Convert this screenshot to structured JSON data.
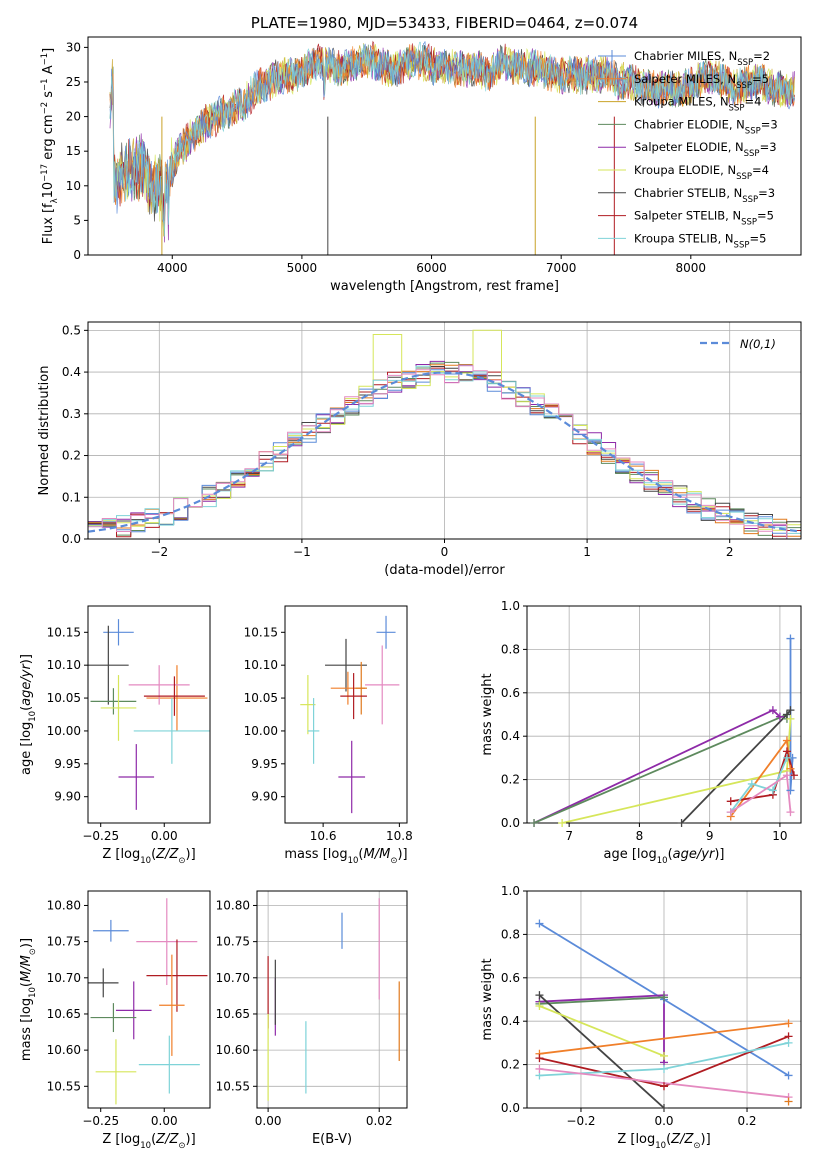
{
  "figure": {
    "title": "PLATE=1980, MJD=53433, FIBERID=0464, z=0.074",
    "colors": {
      "c1": "#5b8bd9",
      "c2": "#e07a1f",
      "c3": "#c9a227",
      "c4": "#5e8a5e",
      "c5": "#8e2aa8",
      "c6": "#d6e65a",
      "c7": "#444444",
      "c8": "#b01c22",
      "c9": "#7fd3d8",
      "c10": "#e48ac0",
      "c11": "#f07f2a"
    }
  },
  "chart_data": [
    {
      "id": "spectrum",
      "type": "line",
      "title": "PLATE=1980, MJD=53433, FIBERID=0464, z=0.074",
      "xlabel": "wavelength [Angstrom, rest frame]",
      "ylabel": "Flux [f_λ 10^-17 erg cm^-2 s^-1 A^-1]",
      "xlim": [
        3350,
        8850
      ],
      "ylim": [
        0,
        31.5
      ],
      "xticks": [
        4000,
        5000,
        6000,
        7000,
        8000
      ],
      "yticks": [
        0,
        5,
        10,
        15,
        20,
        25,
        30
      ],
      "x": [
        3550,
        3650,
        3750,
        3850,
        3950,
        4050,
        4150,
        4250,
        4350,
        4450,
        4550,
        4650,
        4750,
        4850,
        4950,
        5050,
        5150,
        5250,
        5350,
        5450,
        5550,
        5650,
        5750,
        5850,
        5950,
        6050,
        6150,
        6250,
        6350,
        6450,
        6550,
        6650,
        6750,
        6850,
        6950,
        7050,
        7150,
        7250,
        7350,
        7450,
        7550,
        7650,
        7750,
        7850,
        7950,
        8050,
        8150,
        8250,
        8350,
        8450,
        8550,
        8650,
        8750
      ],
      "y": [
        11,
        12,
        13,
        10,
        10,
        15,
        17,
        19,
        20,
        21,
        22,
        24,
        25,
        26,
        26,
        27,
        28,
        27,
        27,
        28,
        28,
        27,
        27,
        28,
        28,
        27,
        27,
        27,
        27,
        26,
        28,
        27,
        27,
        27,
        26,
        26,
        26,
        26,
        26,
        25,
        25,
        24,
        24,
        24,
        24,
        25,
        26,
        25,
        24,
        25,
        25,
        24,
        24
      ],
      "legend_placement": "upper-right",
      "legend": [
        {
          "label": "Chabrier MILES, N_SSP=2",
          "pre": "Chabrier MILES, N",
          "sub": "SSP",
          "post": "=2",
          "color": "c1",
          "marker": true
        },
        {
          "label": "Salpeter MILES, N_SSP=5",
          "pre": "Salpeter MILES, N",
          "sub": "SSP",
          "post": "=5",
          "color": "c11",
          "marker": true
        },
        {
          "label": "Kroupa MILES, N_SSP=4",
          "pre": "Kroupa MILES, N",
          "sub": "SSP",
          "post": "=4",
          "color": "c3",
          "marker": false
        },
        {
          "label": "Chabrier ELODIE, N_SSP=3",
          "pre": "Chabrier ELODIE, N",
          "sub": "SSP",
          "post": "=3",
          "color": "c4",
          "marker": false
        },
        {
          "label": "Salpeter ELODIE, N_SSP=3",
          "pre": "Salpeter ELODIE, N",
          "sub": "SSP",
          "post": "=3",
          "color": "c5",
          "marker": false
        },
        {
          "label": "Kroupa ELODIE, N_SSP=4",
          "pre": "Kroupa ELODIE, N",
          "sub": "SSP",
          "post": "=4",
          "color": "c6",
          "marker": false
        },
        {
          "label": "Chabrier STELIB, N_SSP=3",
          "pre": "Chabrier STELIB, N",
          "sub": "SSP",
          "post": "=3",
          "color": "c7",
          "marker": false
        },
        {
          "label": "Salpeter STELIB, N_SSP=5",
          "pre": "Salpeter STELIB, N",
          "sub": "SSP",
          "post": "=5",
          "color": "c8",
          "marker": false
        },
        {
          "label": "Kroupa STELIB, N_SSP=5",
          "pre": "Kroupa STELIB, N",
          "sub": "SSP",
          "post": "=5",
          "color": "c9",
          "marker": false
        }
      ]
    },
    {
      "id": "residuals",
      "type": "line",
      "xlabel": "(data-model)/error",
      "ylabel": "Normed distribution",
      "xlim": [
        -2.5,
        2.5
      ],
      "ylim": [
        0,
        0.52
      ],
      "xticks": [
        -2,
        -1,
        0,
        1,
        2
      ],
      "yticks": [
        0,
        0.1,
        0.2,
        0.3,
        0.4,
        0.5
      ],
      "grid": true,
      "bin_width": 0.1,
      "normal_curve_label": "N(0,1)",
      "legend_placement": "upper-right"
    },
    {
      "id": "age_vs_Z",
      "type": "scatter",
      "xlabel": "Z [log10(Z/Z☉)]",
      "ylabel": "age [log10(age/yr)]",
      "xlim": [
        -0.3,
        0.18
      ],
      "ylim": [
        9.86,
        10.19
      ],
      "xticks": [
        -0.25,
        0.0
      ],
      "yticks": [
        9.9,
        9.95,
        10.0,
        10.05,
        10.1,
        10.15
      ],
      "points": [
        {
          "x": -0.18,
          "y": 10.15,
          "xerr": 0.06,
          "yerr": 0.02,
          "color": "c1"
        },
        {
          "x": -0.22,
          "y": 10.1,
          "xerr": 0.08,
          "yerr": 0.06,
          "color": "c7"
        },
        {
          "x": -0.2,
          "y": 10.045,
          "xerr": 0.09,
          "yerr": 0.02,
          "color": "c4"
        },
        {
          "x": -0.18,
          "y": 10.035,
          "xerr": 0.07,
          "yerr": 0.05,
          "color": "c6"
        },
        {
          "x": 0.05,
          "y": 10.05,
          "xerr": 0.12,
          "yerr": 0.05,
          "color": "c11"
        },
        {
          "x": -0.02,
          "y": 10.07,
          "xerr": 0.12,
          "yerr": 0.03,
          "color": "c10"
        },
        {
          "x": 0.04,
          "y": 10.053,
          "xerr": 0.12,
          "yerr": 0.03,
          "color": "c8"
        },
        {
          "x": 0.03,
          "y": 10.0,
          "xerr": 0.15,
          "yerr": 0.05,
          "color": "c9"
        },
        {
          "x": -0.11,
          "y": 9.93,
          "xerr": 0.07,
          "yerr": 0.05,
          "color": "c5"
        }
      ]
    },
    {
      "id": "age_vs_mass",
      "type": "scatter",
      "xlabel": "mass [log10(M/M☉)]",
      "ylabel": "",
      "xlim": [
        10.5,
        10.82
      ],
      "ylim": [
        9.86,
        10.19
      ],
      "xticks": [
        10.6,
        10.8
      ],
      "yticks": [
        9.9,
        9.95,
        10.0,
        10.05,
        10.1,
        10.15
      ],
      "points": [
        {
          "x": 10.765,
          "y": 10.15,
          "xerr": 0.025,
          "yerr": 0.025,
          "color": "c1"
        },
        {
          "x": 10.66,
          "y": 10.1,
          "xerr": 0.055,
          "yerr": 0.04,
          "color": "c7"
        },
        {
          "x": 10.665,
          "y": 10.065,
          "xerr": 0.045,
          "yerr": 0.025,
          "color": "c11"
        },
        {
          "x": 10.7,
          "y": 10.065,
          "xerr": 0.015,
          "yerr": 0.04,
          "color": "c2"
        },
        {
          "x": 10.755,
          "y": 10.07,
          "xerr": 0.045,
          "yerr": 0.06,
          "color": "c10"
        },
        {
          "x": 10.68,
          "y": 10.053,
          "xerr": 0.035,
          "yerr": 0.035,
          "color": "c8"
        },
        {
          "x": 10.56,
          "y": 10.04,
          "xerr": 0.02,
          "yerr": 0.045,
          "color": "c6"
        },
        {
          "x": 10.575,
          "y": 10.0,
          "xerr": 0.015,
          "yerr": 0.05,
          "color": "c9"
        },
        {
          "x": 10.675,
          "y": 9.93,
          "xerr": 0.035,
          "yerr": 0.055,
          "color": "c5"
        }
      ]
    },
    {
      "id": "weights_vs_age",
      "type": "line",
      "xlabel": "age [log10(age/yr)]",
      "ylabel": "mass weight",
      "xlim": [
        6.4,
        10.3
      ],
      "ylim": [
        0,
        1.0
      ],
      "xticks": [
        7,
        8,
        9,
        10
      ],
      "yticks": [
        0.0,
        0.2,
        0.4,
        0.6,
        0.8,
        1.0
      ],
      "grid": true,
      "series": [
        {
          "color": "c1",
          "x": [
            10.15,
            10.15,
            10.18
          ],
          "y": [
            0.85,
            0.15,
            0.3
          ]
        },
        {
          "color": "c5",
          "x": [
            6.5,
            9.9,
            10.0
          ],
          "y": [
            0.0,
            0.52,
            0.49
          ]
        },
        {
          "color": "c4",
          "x": [
            6.5,
            10.1,
            10.1
          ],
          "y": [
            0.0,
            0.5,
            0.48
          ]
        },
        {
          "color": "c7",
          "x": [
            8.6,
            10.1,
            10.15
          ],
          "y": [
            0.0,
            0.5,
            0.52
          ]
        },
        {
          "color": "c6",
          "x": [
            6.9,
            10.1,
            10.15
          ],
          "y": [
            0.0,
            0.24,
            0.48
          ]
        },
        {
          "color": "c11",
          "x": [
            9.3,
            10.1,
            10.15
          ],
          "y": [
            0.03,
            0.38,
            0.25
          ]
        },
        {
          "color": "c8",
          "x": [
            9.3,
            9.9,
            10.1,
            10.2
          ],
          "y": [
            0.1,
            0.13,
            0.33,
            0.22
          ]
        },
        {
          "color": "c9",
          "x": [
            9.3,
            9.6,
            9.9,
            10.1
          ],
          "y": [
            0.05,
            0.18,
            0.15,
            0.3
          ]
        },
        {
          "color": "c10",
          "x": [
            9.3,
            10.1,
            10.15
          ],
          "y": [
            0.05,
            0.22,
            0.05
          ]
        }
      ]
    },
    {
      "id": "mass_vs_Z",
      "type": "scatter",
      "xlabel": "Z [log10(Z/Z☉)]",
      "ylabel": "mass [log10(M/M☉)]",
      "xlim": [
        -0.3,
        0.18
      ],
      "ylim": [
        10.52,
        10.82
      ],
      "xticks": [
        -0.25,
        0.0
      ],
      "yticks": [
        10.55,
        10.6,
        10.65,
        10.7,
        10.75,
        10.8
      ],
      "points": [
        {
          "x": -0.21,
          "y": 10.765,
          "xerr": 0.07,
          "yerr": 0.015,
          "color": "c1"
        },
        {
          "x": 0.01,
          "y": 10.75,
          "xerr": 0.12,
          "yerr": 0.06,
          "color": "c10"
        },
        {
          "x": -0.24,
          "y": 10.693,
          "xerr": 0.06,
          "yerr": 0.02,
          "color": "c7"
        },
        {
          "x": 0.05,
          "y": 10.703,
          "xerr": 0.12,
          "yerr": 0.05,
          "color": "c8"
        },
        {
          "x": -0.12,
          "y": 10.655,
          "xerr": 0.07,
          "yerr": 0.04,
          "color": "c5"
        },
        {
          "x": -0.2,
          "y": 10.645,
          "xerr": 0.09,
          "yerr": 0.02,
          "color": "c4"
        },
        {
          "x": 0.03,
          "y": 10.662,
          "xerr": 0.05,
          "yerr": 0.07,
          "color": "c11"
        },
        {
          "x": -0.19,
          "y": 10.57,
          "xerr": 0.08,
          "yerr": 0.045,
          "color": "c6"
        },
        {
          "x": 0.02,
          "y": 10.58,
          "xerr": 0.12,
          "yerr": 0.04,
          "color": "c9"
        }
      ]
    },
    {
      "id": "mass_vs_ebv",
      "type": "scatter",
      "xlabel": "E(B-V)",
      "ylabel": "",
      "xlim": [
        -0.002,
        0.025
      ],
      "ylim": [
        10.52,
        10.82
      ],
      "xticks": [
        0.0,
        0.02
      ],
      "yticks": [
        10.55,
        10.6,
        10.65,
        10.7,
        10.75,
        10.8
      ],
      "grid": true,
      "points": [
        {
          "x": 0.0,
          "y": 10.68,
          "xerr": 0,
          "yerr": 0.05,
          "color": "c8"
        },
        {
          "x": 0.0,
          "y": 10.59,
          "xerr": 0,
          "yerr": 0.06,
          "color": "c6"
        },
        {
          "x": 0.0013,
          "y": 10.66,
          "xerr": 0,
          "yerr": 0.04,
          "color": "c5"
        },
        {
          "x": 0.0013,
          "y": 10.68,
          "xerr": 0,
          "yerr": 0.045,
          "color": "c7"
        },
        {
          "x": 0.0068,
          "y": 10.59,
          "xerr": 0,
          "yerr": 0.05,
          "color": "c9"
        },
        {
          "x": 0.0133,
          "y": 10.765,
          "xerr": 0,
          "yerr": 0.025,
          "color": "c1"
        },
        {
          "x": 0.02,
          "y": 10.74,
          "xerr": 0,
          "yerr": 0.07,
          "color": "c10"
        },
        {
          "x": 0.0236,
          "y": 10.64,
          "xerr": 0,
          "yerr": 0.055,
          "color": "c2"
        }
      ]
    },
    {
      "id": "weights_vs_Z",
      "type": "line",
      "xlabel": "Z [log10(Z/Z☉)]",
      "ylabel": "mass weight",
      "xlim": [
        -0.33,
        0.33
      ],
      "ylim": [
        0,
        1.0
      ],
      "xticks": [
        -0.2,
        0.0,
        0.2
      ],
      "yticks": [
        0.0,
        0.2,
        0.4,
        0.6,
        0.8,
        1.0
      ],
      "grid": true,
      "series": [
        {
          "color": "c1",
          "x": [
            -0.3,
            0.0,
            0.3
          ],
          "y": [
            0.85,
            0.5,
            0.15
          ]
        },
        {
          "color": "c5",
          "x": [
            -0.3,
            0.0,
            0.0
          ],
          "y": [
            0.49,
            0.52,
            0.21
          ]
        },
        {
          "color": "c4",
          "x": [
            -0.3,
            0.0
          ],
          "y": [
            0.48,
            0.51
          ]
        },
        {
          "color": "c7",
          "x": [
            -0.3,
            0.0
          ],
          "y": [
            0.52,
            0.0
          ]
        },
        {
          "color": "c6",
          "x": [
            -0.3,
            0.0
          ],
          "y": [
            0.47,
            0.24
          ]
        },
        {
          "color": "c11",
          "x": [
            -0.3,
            0.3
          ],
          "y": [
            0.25,
            0.39
          ]
        },
        {
          "color": "c8",
          "x": [
            -0.3,
            0.0,
            0.3
          ],
          "y": [
            0.23,
            0.1,
            0.33
          ]
        },
        {
          "color": "c9",
          "x": [
            -0.3,
            0.0,
            0.3
          ],
          "y": [
            0.15,
            0.18,
            0.3
          ]
        },
        {
          "color": "c10",
          "x": [
            -0.3,
            0.3
          ],
          "y": [
            0.18,
            0.05
          ]
        },
        {
          "color": "c2",
          "x": [
            0.3
          ],
          "y": [
            0.03
          ]
        }
      ]
    }
  ]
}
